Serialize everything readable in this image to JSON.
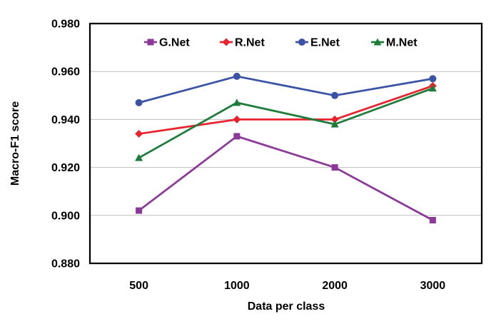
{
  "chart_data": {
    "type": "line",
    "title": "",
    "xlabel": "Data per class",
    "ylabel": "Macro-F1 score",
    "categories": [
      "500",
      "1000",
      "2000",
      "3000"
    ],
    "series": [
      {
        "name": "G.Net",
        "color": "#8C3899",
        "marker": "square",
        "values": [
          0.902,
          0.933,
          0.92,
          0.898
        ]
      },
      {
        "name": "R.Net",
        "color": "#E8232D",
        "marker": "diamond",
        "values": [
          0.934,
          0.94,
          0.94,
          0.954
        ]
      },
      {
        "name": "E.Net",
        "color": "#3A53A5",
        "marker": "circle",
        "values": [
          0.947,
          0.958,
          0.95,
          0.957
        ]
      },
      {
        "name": "M.Net",
        "color": "#1E7C3A",
        "marker": "triangle",
        "values": [
          0.924,
          0.947,
          0.938,
          0.953
        ]
      }
    ],
    "y_axis": {
      "min": 0.88,
      "max": 0.98,
      "step": 0.02,
      "tick_format": "0.000"
    },
    "grid": true,
    "legend_position": "top-inside",
    "gridline_color": "#BFBFBF",
    "border_color": "#000000",
    "axis_text_color": "#000000"
  }
}
